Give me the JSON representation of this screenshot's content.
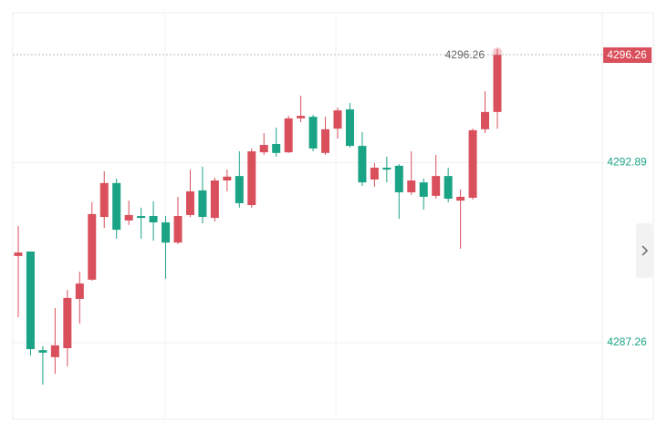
{
  "chart_data": {
    "type": "candlestick",
    "up_color": "#d9505c",
    "down_color": "#1ba386",
    "ylim": [
      4284.87,
      4297.57
    ],
    "yticks": [
      4292.89,
      4287.26
    ],
    "grid": true,
    "last_price": 4296.26,
    "candles": [
      {
        "open": 4289.97,
        "high": 4290.91,
        "low": 4288.06,
        "close": 4290.08
      },
      {
        "open": 4290.11,
        "high": 4290.11,
        "low": 4286.86,
        "close": 4287.06
      },
      {
        "open": 4287.03,
        "high": 4287.15,
        "low": 4285.95,
        "close": 4286.95
      },
      {
        "open": 4286.81,
        "high": 4288.34,
        "low": 4286.29,
        "close": 4287.18
      },
      {
        "open": 4287.09,
        "high": 4288.91,
        "low": 4286.52,
        "close": 4288.66
      },
      {
        "open": 4288.63,
        "high": 4289.48,
        "low": 4287.86,
        "close": 4289.11
      },
      {
        "open": 4289.23,
        "high": 4291.65,
        "low": 4289.2,
        "close": 4291.28
      },
      {
        "open": 4291.19,
        "high": 4292.62,
        "low": 4290.85,
        "close": 4292.25
      },
      {
        "open": 4292.25,
        "high": 4292.39,
        "low": 4290.51,
        "close": 4290.79
      },
      {
        "open": 4291.08,
        "high": 4291.7,
        "low": 4290.94,
        "close": 4291.25
      },
      {
        "open": 4291.22,
        "high": 4291.48,
        "low": 4290.51,
        "close": 4291.16
      },
      {
        "open": 4291.22,
        "high": 4291.68,
        "low": 4290.45,
        "close": 4291.02
      },
      {
        "open": 4291.02,
        "high": 4291.22,
        "low": 4289.26,
        "close": 4290.39
      },
      {
        "open": 4290.39,
        "high": 4291.82,
        "low": 4290.34,
        "close": 4291.22
      },
      {
        "open": 4291.25,
        "high": 4292.67,
        "low": 4291.19,
        "close": 4291.99
      },
      {
        "open": 4292.02,
        "high": 4292.76,
        "low": 4290.99,
        "close": 4291.19
      },
      {
        "open": 4291.16,
        "high": 4292.42,
        "low": 4291.05,
        "close": 4292.33
      },
      {
        "open": 4292.33,
        "high": 4292.67,
        "low": 4291.99,
        "close": 4292.45
      },
      {
        "open": 4292.47,
        "high": 4293.24,
        "low": 4291.48,
        "close": 4291.62
      },
      {
        "open": 4291.56,
        "high": 4293.33,
        "low": 4291.48,
        "close": 4293.24
      },
      {
        "open": 4293.21,
        "high": 4293.81,
        "low": 4293.13,
        "close": 4293.44
      },
      {
        "open": 4293.47,
        "high": 4293.98,
        "low": 4293.07,
        "close": 4293.19
      },
      {
        "open": 4293.21,
        "high": 4294.35,
        "low": 4293.19,
        "close": 4294.27
      },
      {
        "open": 4294.27,
        "high": 4294.98,
        "low": 4294.15,
        "close": 4294.35
      },
      {
        "open": 4294.32,
        "high": 4294.38,
        "low": 4293.24,
        "close": 4293.33
      },
      {
        "open": 4293.19,
        "high": 4294.32,
        "low": 4293.13,
        "close": 4293.93
      },
      {
        "open": 4293.95,
        "high": 4294.61,
        "low": 4293.64,
        "close": 4294.52
      },
      {
        "open": 4294.55,
        "high": 4294.75,
        "low": 4293.36,
        "close": 4293.41
      },
      {
        "open": 4293.41,
        "high": 4293.84,
        "low": 4292.16,
        "close": 4292.27
      },
      {
        "open": 4292.36,
        "high": 4292.87,
        "low": 4292.13,
        "close": 4292.73
      },
      {
        "open": 4292.73,
        "high": 4293.07,
        "low": 4292.27,
        "close": 4292.67
      },
      {
        "open": 4292.79,
        "high": 4292.84,
        "low": 4291.13,
        "close": 4291.96
      },
      {
        "open": 4291.96,
        "high": 4293.24,
        "low": 4291.88,
        "close": 4292.33
      },
      {
        "open": 4292.27,
        "high": 4292.39,
        "low": 4291.42,
        "close": 4291.82
      },
      {
        "open": 4291.85,
        "high": 4293.13,
        "low": 4291.76,
        "close": 4292.47
      },
      {
        "open": 4292.47,
        "high": 4292.73,
        "low": 4291.65,
        "close": 4291.76
      },
      {
        "open": 4291.7,
        "high": 4292.05,
        "low": 4290.2,
        "close": 4291.82
      },
      {
        "open": 4291.79,
        "high": 4293.95,
        "low": 4291.73,
        "close": 4293.9
      },
      {
        "open": 4293.93,
        "high": 4295.12,
        "low": 4293.81,
        "close": 4294.47
      },
      {
        "open": 4294.47,
        "high": 4296.43,
        "low": 4293.95,
        "close": 4296.26
      }
    ]
  }
}
